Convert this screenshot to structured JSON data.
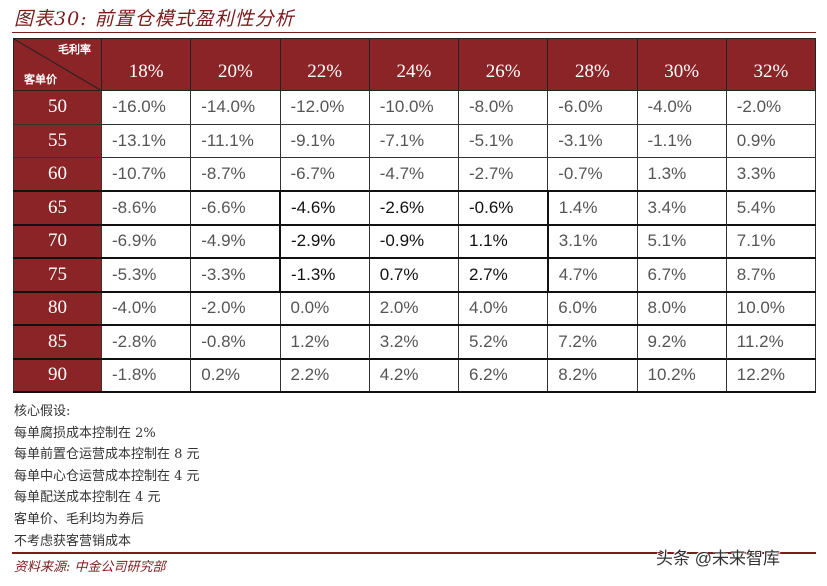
{
  "title": "图表30: 前置仓模式盈利性分析",
  "table": {
    "corner_top": "毛利率",
    "corner_bottom": "客单价",
    "columns": [
      "18%",
      "20%",
      "22%",
      "24%",
      "26%",
      "28%",
      "30%",
      "32%"
    ],
    "rows": [
      {
        "label": "50",
        "values": [
          "-16.0%",
          "-14.0%",
          "-12.0%",
          "-10.0%",
          "-8.0%",
          "-6.0%",
          "-4.0%",
          "-2.0%"
        ]
      },
      {
        "label": "55",
        "values": [
          "-13.1%",
          "-11.1%",
          "-9.1%",
          "-7.1%",
          "-5.1%",
          "-3.1%",
          "-1.1%",
          "0.9%"
        ]
      },
      {
        "label": "60",
        "values": [
          "-10.7%",
          "-8.7%",
          "-6.7%",
          "-4.7%",
          "-2.7%",
          "-0.7%",
          "1.3%",
          "3.3%"
        ]
      },
      {
        "label": "65",
        "values": [
          "-8.6%",
          "-6.6%",
          "-4.6%",
          "-2.6%",
          "-0.6%",
          "1.4%",
          "3.4%",
          "5.4%"
        ]
      },
      {
        "label": "70",
        "values": [
          "-6.9%",
          "-4.9%",
          "-2.9%",
          "-0.9%",
          "1.1%",
          "3.1%",
          "5.1%",
          "7.1%"
        ]
      },
      {
        "label": "75",
        "values": [
          "-5.3%",
          "-3.3%",
          "-1.3%",
          "0.7%",
          "2.7%",
          "4.7%",
          "6.7%",
          "8.7%"
        ]
      },
      {
        "label": "80",
        "values": [
          "-4.0%",
          "-2.0%",
          "0.0%",
          "2.0%",
          "4.0%",
          "6.0%",
          "8.0%",
          "10.0%"
        ]
      },
      {
        "label": "85",
        "values": [
          "-2.8%",
          "-0.8%",
          "1.2%",
          "3.2%",
          "5.2%",
          "7.2%",
          "9.2%",
          "11.2%"
        ]
      },
      {
        "label": "90",
        "values": [
          "-1.8%",
          "0.2%",
          "2.2%",
          "4.2%",
          "6.2%",
          "8.2%",
          "10.2%",
          "12.2%"
        ]
      }
    ],
    "highlight": {
      "rows": [
        3,
        4,
        5
      ],
      "cols": [
        2,
        3,
        4
      ]
    }
  },
  "notes": [
    "核心假设:",
    "每单腐损成本控制在 2%",
    "每单前置仓运营成本控制在 8 元",
    "每单中心仓运营成本控制在 4 元",
    "每单配送成本控制在 4 元",
    "客单价、毛利均为券后",
    "不考虑获客营销成本"
  ],
  "source": "资料来源: 中金公司研究部",
  "watermark": "头条 @未来智库",
  "colors": {
    "header_bg": "#8b2426",
    "accent": "#7b1d1d"
  }
}
